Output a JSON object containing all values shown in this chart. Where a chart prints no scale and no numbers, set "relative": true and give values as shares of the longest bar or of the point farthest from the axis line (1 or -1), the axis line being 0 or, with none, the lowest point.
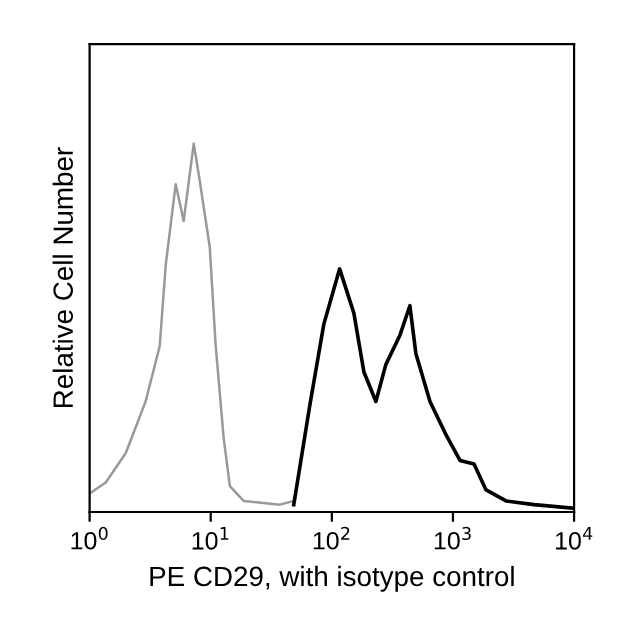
{
  "chart_data": {
    "type": "line",
    "relative": true,
    "xlabel": "PE CD29, with isotype control",
    "ylabel": "Relative Cell Number",
    "log": "x",
    "xlim": [
      1,
      10000
    ],
    "xticks": [
      {
        "value": 1,
        "label": "10$^{0}$"
      },
      {
        "value": 10,
        "label": "10$^{1}$"
      },
      {
        "value": 100,
        "label": "10$^{2}$"
      },
      {
        "value": 1000,
        "label": "10$^{3}$"
      },
      {
        "value": 10000,
        "label": "10$^{4}$"
      }
    ],
    "grid": false,
    "legend": false,
    "marker": "none",
    "line_style": "solid",
    "series": [
      {
        "color": "#999999",
        "x": [
          1.0,
          1.36,
          1.99,
          2.9,
          3.79,
          4.25,
          5.14,
          5.98,
          7.24,
          8.11,
          9.81,
          11.0,
          12.8,
          14.4,
          18.7,
          37.2,
          48.5
        ],
        "values": [
          0.05,
          0.08,
          0.16,
          0.3,
          0.45,
          0.67,
          0.89,
          0.79,
          1.0,
          0.9,
          0.72,
          0.45,
          0.2,
          0.07,
          0.03,
          0.02,
          0.03
        ]
      },
      {
        "color": "#000000",
        "x": [
          48.5,
          65.8,
          85.9,
          116,
          152,
          184,
          231,
          279,
          365,
          441,
          494,
          646,
          875,
          1143,
          1493,
          1875,
          2742,
          4667,
          10000
        ],
        "values": [
          0.02,
          0.29,
          0.51,
          0.66,
          0.54,
          0.38,
          0.3,
          0.4,
          0.48,
          0.56,
          0.43,
          0.3,
          0.21,
          0.14,
          0.13,
          0.06,
          0.03,
          0.02,
          0.01
        ]
      }
    ]
  }
}
